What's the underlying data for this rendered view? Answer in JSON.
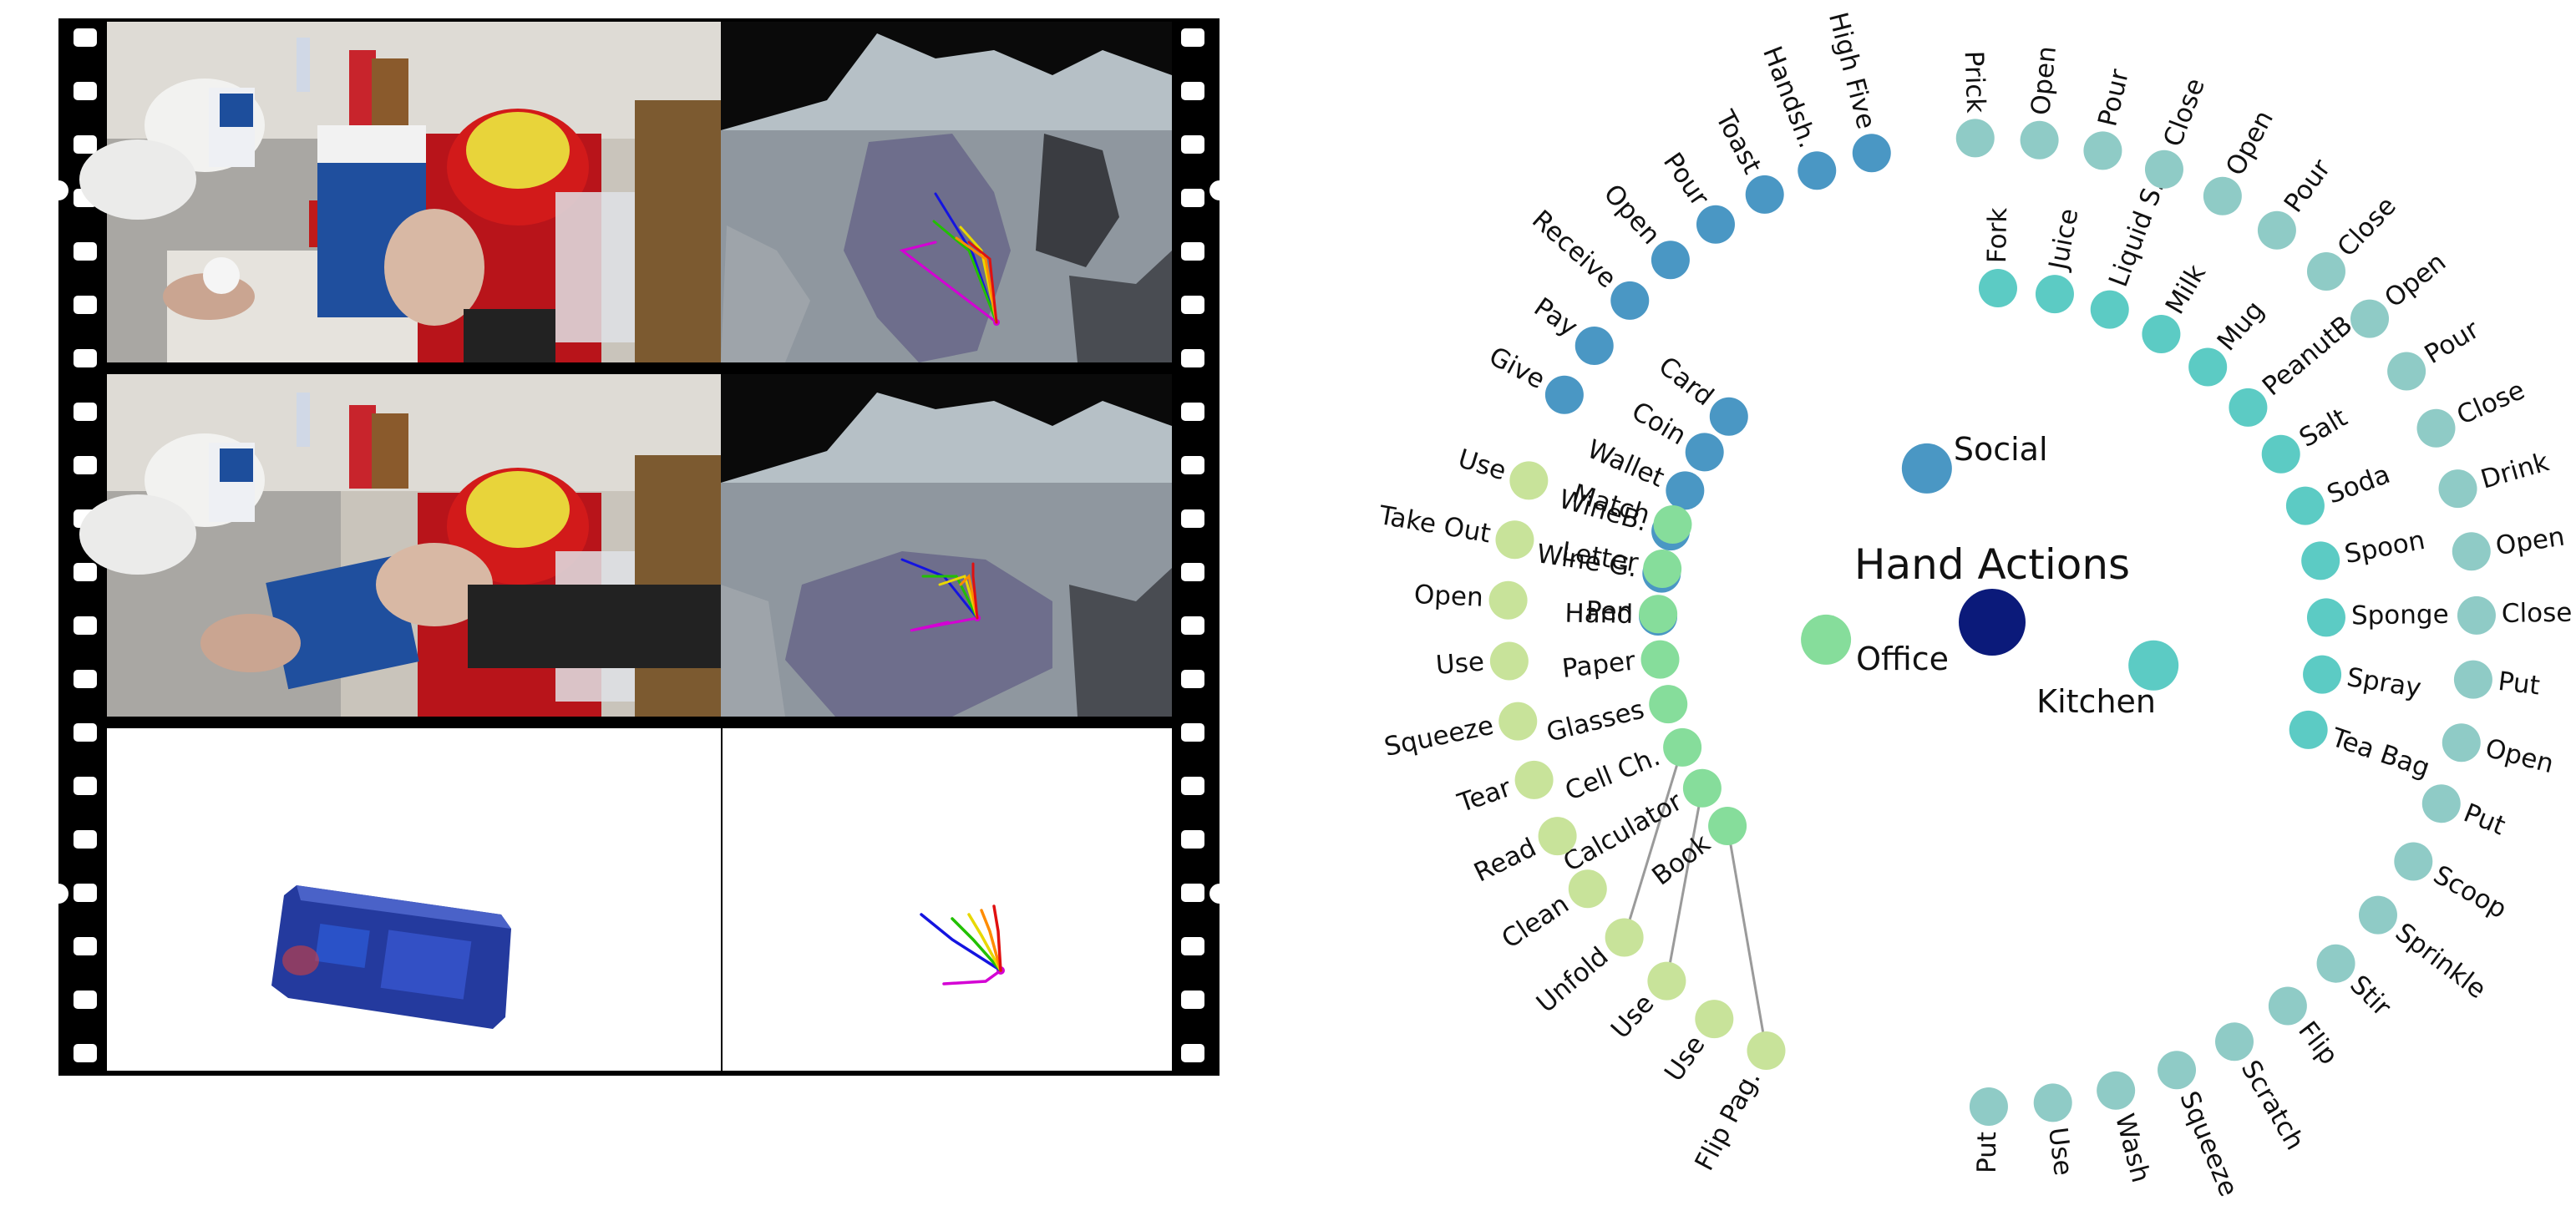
{
  "colors": {
    "center": "#0b1a7a",
    "social": "#4a97c4",
    "office": "#86dd9b",
    "kitchen": "#5ccbc4",
    "office_leaf": "#c8e39a",
    "kitchen_leaf": "#8fcbc6",
    "hand_red": "#e01010",
    "hand_orange": "#ff8c00",
    "hand_yellow": "#e8d800",
    "hand_green": "#22c000",
    "hand_blue": "#1414e0",
    "hand_magenta": "#d400d4"
  },
  "tree": {
    "title": "Hand Actions",
    "categories": [
      {
        "key": "social",
        "label": "Social"
      },
      {
        "key": "office",
        "label": "Office"
      },
      {
        "key": "kitchen",
        "label": "Kitchen"
      }
    ],
    "social": [
      "Card",
      "Coin",
      "Wallet",
      "WineB.",
      "Wine G.",
      "Hand"
    ],
    "social_actions": [
      "Give",
      "Pay",
      "Receive",
      "Open",
      "Pour",
      "Toast",
      "Handsh.",
      "High Five"
    ],
    "office": [
      "Match",
      "Letter",
      "Pen",
      "Paper",
      "Glasses",
      "Cell Ch.",
      "Calculator",
      "Book"
    ],
    "office_actions": [
      "Use",
      "Take Out",
      "Open",
      "Use",
      "Squeeze",
      "Tear",
      "Read",
      "Clean",
      "Unfold",
      "Use",
      "Use",
      "Flip Pag."
    ],
    "kitchen": [
      "Fork",
      "Juice",
      "Liquid S.",
      "Milk",
      "Mug",
      "PeanutB",
      "Salt",
      "Soda",
      "Spoon",
      "Sponge",
      "Spray",
      "Tea Bag"
    ],
    "kitchen_actions": [
      "Prick",
      "Open",
      "Pour",
      "Close",
      "Open",
      "Pour",
      "Close",
      "Open",
      "Pour",
      "Close",
      "Drink",
      "Open",
      "Close",
      "Put",
      "Open",
      "Put",
      "Scoop",
      "Sprinkle",
      "Stir",
      "Flip",
      "Scratch",
      "Squeeze",
      "Wash",
      "Use",
      "Put"
    ]
  }
}
